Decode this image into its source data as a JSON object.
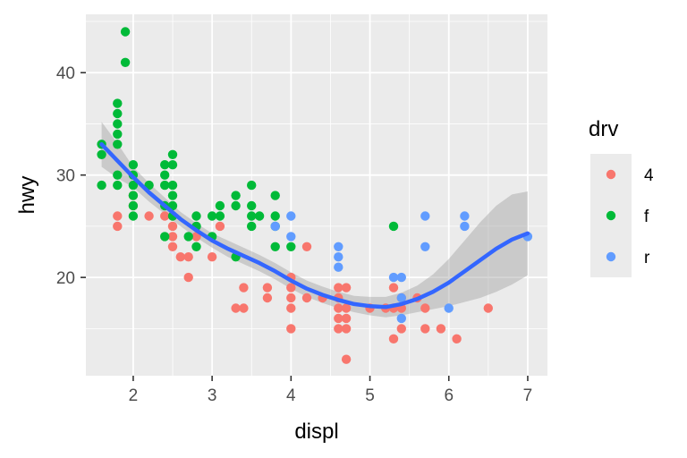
{
  "chart_data": {
    "type": "scatter",
    "xlabel": "displ",
    "ylabel": "hwy",
    "xlim": [
      1.4,
      7.25
    ],
    "ylim": [
      10.4,
      45.7
    ],
    "x_ticks": [
      2,
      3,
      4,
      5,
      6,
      7
    ],
    "y_ticks": [
      20,
      30,
      40
    ],
    "x_tick_labels": [
      "2",
      "3",
      "4",
      "5",
      "6",
      "7"
    ],
    "y_tick_labels": [
      "20",
      "30",
      "40"
    ],
    "grid": true,
    "legend": {
      "title": "drv",
      "position": "right",
      "entries": [
        {
          "label": "4",
          "color": "#F8766D"
        },
        {
          "label": "f",
          "color": "#00BA38"
        },
        {
          "label": "r",
          "color": "#619CFF"
        }
      ]
    },
    "series": [
      {
        "name": "4",
        "color": "#F8766D",
        "points": [
          [
            1.8,
            26
          ],
          [
            1.8,
            25
          ],
          [
            2.0,
            28
          ],
          [
            2.0,
            27
          ],
          [
            2.2,
            26
          ],
          [
            2.4,
            26
          ],
          [
            2.5,
            26
          ],
          [
            2.5,
            25
          ],
          [
            2.5,
            24
          ],
          [
            2.5,
            23
          ],
          [
            2.6,
            22
          ],
          [
            2.7,
            20
          ],
          [
            2.7,
            22
          ],
          [
            2.8,
            24
          ],
          [
            3.0,
            22
          ],
          [
            3.1,
            25
          ],
          [
            3.3,
            17
          ],
          [
            3.4,
            19
          ],
          [
            3.4,
            17
          ],
          [
            3.7,
            19
          ],
          [
            3.7,
            18
          ],
          [
            4.0,
            19
          ],
          [
            4.0,
            18
          ],
          [
            4.0,
            17
          ],
          [
            4.0,
            15
          ],
          [
            4.0,
            20
          ],
          [
            4.2,
            23
          ],
          [
            4.2,
            18
          ],
          [
            4.4,
            18
          ],
          [
            4.6,
            19
          ],
          [
            4.6,
            18
          ],
          [
            4.6,
            17
          ],
          [
            4.6,
            16
          ],
          [
            4.6,
            15
          ],
          [
            4.7,
            19
          ],
          [
            4.7,
            17
          ],
          [
            4.7,
            16
          ],
          [
            4.7,
            15
          ],
          [
            4.7,
            12
          ],
          [
            5.0,
            17
          ],
          [
            5.2,
            17
          ],
          [
            5.3,
            19
          ],
          [
            5.3,
            17
          ],
          [
            5.3,
            14
          ],
          [
            5.4,
            18
          ],
          [
            5.4,
            17
          ],
          [
            5.4,
            15
          ],
          [
            5.6,
            18
          ],
          [
            5.7,
            17
          ],
          [
            5.7,
            15
          ],
          [
            5.9,
            15
          ],
          [
            6.1,
            14
          ],
          [
            6.5,
            17
          ]
        ]
      },
      {
        "name": "f",
        "color": "#00BA38",
        "points": [
          [
            1.6,
            33
          ],
          [
            1.6,
            32
          ],
          [
            1.6,
            29
          ],
          [
            1.8,
            37
          ],
          [
            1.8,
            36
          ],
          [
            1.8,
            35
          ],
          [
            1.8,
            34
          ],
          [
            1.8,
            33
          ],
          [
            1.8,
            30
          ],
          [
            1.8,
            29
          ],
          [
            1.9,
            44
          ],
          [
            1.9,
            41
          ],
          [
            2.0,
            31
          ],
          [
            2.0,
            30
          ],
          [
            2.0,
            29
          ],
          [
            2.0,
            28
          ],
          [
            2.0,
            27
          ],
          [
            2.0,
            26
          ],
          [
            2.2,
            29
          ],
          [
            2.4,
            31
          ],
          [
            2.4,
            30
          ],
          [
            2.4,
            29
          ],
          [
            2.4,
            27
          ],
          [
            2.4,
            24
          ],
          [
            2.5,
            32
          ],
          [
            2.5,
            31
          ],
          [
            2.5,
            29
          ],
          [
            2.5,
            28
          ],
          [
            2.5,
            27
          ],
          [
            2.5,
            26
          ],
          [
            2.7,
            24
          ],
          [
            2.8,
            26
          ],
          [
            2.8,
            25
          ],
          [
            2.8,
            23
          ],
          [
            3.0,
            26
          ],
          [
            3.0,
            24
          ],
          [
            3.1,
            27
          ],
          [
            3.1,
            26
          ],
          [
            3.3,
            28
          ],
          [
            3.3,
            27
          ],
          [
            3.3,
            22
          ],
          [
            3.5,
            29
          ],
          [
            3.5,
            27
          ],
          [
            3.5,
            26
          ],
          [
            3.5,
            25
          ],
          [
            3.6,
            26
          ],
          [
            3.8,
            28
          ],
          [
            3.8,
            26
          ],
          [
            3.8,
            25
          ],
          [
            3.8,
            23
          ],
          [
            4.0,
            23
          ],
          [
            5.3,
            25
          ]
        ]
      },
      {
        "name": "r",
        "color": "#619CFF",
        "points": [
          [
            3.8,
            25
          ],
          [
            4.0,
            26
          ],
          [
            4.0,
            24
          ],
          [
            4.6,
            23
          ],
          [
            4.6,
            22
          ],
          [
            4.6,
            21
          ],
          [
            5.3,
            20
          ],
          [
            5.4,
            20
          ],
          [
            5.4,
            18
          ],
          [
            5.4,
            16
          ],
          [
            5.7,
            26
          ],
          [
            5.7,
            23
          ],
          [
            6.0,
            17
          ],
          [
            6.2,
            26
          ],
          [
            6.2,
            25
          ],
          [
            7.0,
            24
          ]
        ]
      }
    ],
    "smooth": {
      "method": "loess",
      "color": "#3366FF",
      "ribbon_color": "#999999",
      "line": [
        [
          1.6,
          33.0
        ],
        [
          1.8,
          31.4
        ],
        [
          2.0,
          29.8
        ],
        [
          2.2,
          28.3
        ],
        [
          2.4,
          27.0
        ],
        [
          2.6,
          25.7
        ],
        [
          2.8,
          24.6
        ],
        [
          3.0,
          23.6
        ],
        [
          3.2,
          22.8
        ],
        [
          3.4,
          22.1
        ],
        [
          3.6,
          21.4
        ],
        [
          3.8,
          20.6
        ],
        [
          4.0,
          19.7
        ],
        [
          4.2,
          18.9
        ],
        [
          4.4,
          18.3
        ],
        [
          4.6,
          17.8
        ],
        [
          4.8,
          17.4
        ],
        [
          5.0,
          17.2
        ],
        [
          5.2,
          17.1
        ],
        [
          5.4,
          17.4
        ],
        [
          5.6,
          17.9
        ],
        [
          5.8,
          18.6
        ],
        [
          6.0,
          19.5
        ],
        [
          6.2,
          20.6
        ],
        [
          6.4,
          21.7
        ],
        [
          6.6,
          22.8
        ],
        [
          6.8,
          23.7
        ],
        [
          7.0,
          24.3
        ]
      ],
      "ribbon": [
        [
          1.6,
          30.8,
          35.2
        ],
        [
          1.8,
          29.7,
          33.1
        ],
        [
          2.0,
          28.8,
          30.8
        ],
        [
          2.2,
          27.4,
          29.2
        ],
        [
          2.4,
          26.2,
          27.8
        ],
        [
          2.6,
          25.0,
          26.4
        ],
        [
          2.8,
          23.9,
          25.3
        ],
        [
          3.0,
          22.9,
          24.3
        ],
        [
          3.2,
          22.0,
          23.6
        ],
        [
          3.4,
          21.3,
          22.9
        ],
        [
          3.6,
          20.6,
          22.2
        ],
        [
          3.8,
          19.8,
          21.4
        ],
        [
          4.0,
          18.9,
          20.5
        ],
        [
          4.2,
          18.1,
          19.7
        ],
        [
          4.4,
          17.5,
          19.1
        ],
        [
          4.6,
          17.0,
          18.6
        ],
        [
          4.8,
          16.6,
          18.2
        ],
        [
          5.0,
          16.3,
          18.1
        ],
        [
          5.2,
          16.1,
          18.1
        ],
        [
          5.4,
          16.3,
          18.5
        ],
        [
          5.6,
          16.6,
          19.2
        ],
        [
          5.8,
          16.9,
          20.3
        ],
        [
          6.0,
          17.2,
          21.8
        ],
        [
          6.2,
          17.6,
          23.6
        ],
        [
          6.4,
          18.0,
          25.4
        ],
        [
          6.6,
          18.6,
          27.0
        ],
        [
          6.8,
          19.3,
          28.1
        ],
        [
          7.0,
          20.2,
          28.4
        ]
      ]
    }
  }
}
